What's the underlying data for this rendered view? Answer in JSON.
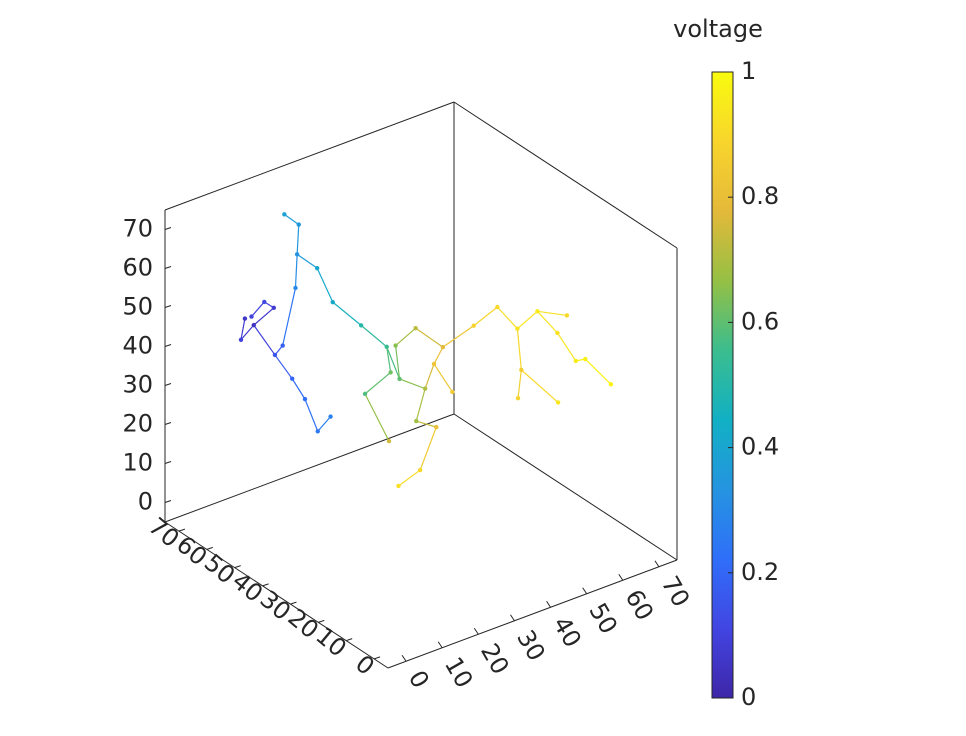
{
  "chart_data": {
    "type": "network3d",
    "colorbar_label": "voltage",
    "clim": [
      0,
      1
    ],
    "cticks": [
      0,
      0.2,
      0.4,
      0.6,
      0.8,
      1
    ],
    "colormap": [
      "#3e26a8",
      "#4245e2",
      "#2f6ff9",
      "#2594e0",
      "#12b0c4",
      "#3bbd8e",
      "#95c044",
      "#e4b93a",
      "#f8d52c",
      "#f9fb0e"
    ],
    "xlim": [
      -5,
      75
    ],
    "ylim": [
      -5,
      75
    ],
    "zlim": [
      -5,
      75
    ],
    "xticks": [
      0,
      10,
      20,
      30,
      40,
      50,
      60,
      70
    ],
    "yticks": [
      0,
      10,
      20,
      30,
      40,
      50,
      60,
      70
    ],
    "zticks": [
      0,
      10,
      20,
      30,
      40,
      50,
      60,
      70
    ],
    "nodes": {
      "x": [
        8,
        12,
        6,
        14,
        10,
        16,
        4,
        12,
        18,
        20,
        22,
        18,
        24,
        26,
        16,
        18,
        14,
        20,
        30,
        34,
        36,
        32,
        38,
        40,
        28,
        36,
        42,
        30,
        44,
        46,
        40,
        34,
        28,
        48,
        55,
        60,
        64,
        68,
        72,
        74,
        72,
        76,
        70,
        62,
        58,
        66
      ],
      "y": [
        60,
        58,
        62,
        64,
        55,
        60,
        58,
        66,
        58,
        60,
        62,
        62,
        58,
        55,
        52,
        50,
        54,
        48,
        50,
        46,
        44,
        42,
        48,
        40,
        46,
        38,
        46,
        40,
        42,
        38,
        36,
        34,
        34,
        44,
        42,
        40,
        38,
        36,
        34,
        30,
        24,
        20,
        28,
        34,
        30,
        26
      ],
      "z": [
        48,
        52,
        44,
        50,
        42,
        40,
        52,
        46,
        55,
        62,
        68,
        72,
        58,
        50,
        30,
        22,
        35,
        26,
        45,
        40,
        32,
        36,
        38,
        30,
        30,
        24,
        42,
        20,
        34,
        28,
        22,
        14,
        12,
        36,
        40,
        44,
        38,
        42,
        36,
        30,
        34,
        28,
        44,
        30,
        26,
        24
      ],
      "voltage": [
        0.05,
        0.08,
        0.1,
        0.12,
        0.15,
        0.18,
        0.06,
        0.1,
        0.3,
        0.33,
        0.35,
        0.38,
        0.4,
        0.42,
        0.22,
        0.25,
        0.2,
        0.28,
        0.5,
        0.55,
        0.6,
        0.62,
        0.65,
        0.7,
        0.58,
        0.68,
        0.72,
        0.75,
        0.82,
        0.85,
        0.8,
        0.9,
        0.92,
        0.78,
        0.88,
        0.9,
        0.93,
        0.95,
        0.92,
        0.96,
        0.97,
        0.98,
        0.9,
        0.86,
        0.88,
        0.94
      ]
    },
    "links": [
      [
        0,
        1
      ],
      [
        0,
        2
      ],
      [
        1,
        3
      ],
      [
        2,
        6
      ],
      [
        3,
        7
      ],
      [
        0,
        4
      ],
      [
        4,
        5
      ],
      [
        5,
        8
      ],
      [
        8,
        9
      ],
      [
        9,
        10
      ],
      [
        10,
        11
      ],
      [
        9,
        12
      ],
      [
        12,
        13
      ],
      [
        4,
        16
      ],
      [
        16,
        14
      ],
      [
        14,
        15
      ],
      [
        15,
        17
      ],
      [
        13,
        18
      ],
      [
        18,
        19
      ],
      [
        19,
        20
      ],
      [
        19,
        21
      ],
      [
        21,
        24
      ],
      [
        24,
        27
      ],
      [
        20,
        22
      ],
      [
        22,
        26
      ],
      [
        20,
        23
      ],
      [
        23,
        25
      ],
      [
        25,
        30
      ],
      [
        30,
        31
      ],
      [
        31,
        32
      ],
      [
        23,
        28
      ],
      [
        28,
        29
      ],
      [
        28,
        33
      ],
      [
        33,
        34
      ],
      [
        34,
        35
      ],
      [
        35,
        36
      ],
      [
        36,
        37
      ],
      [
        37,
        38
      ],
      [
        38,
        39
      ],
      [
        39,
        40
      ],
      [
        40,
        41
      ],
      [
        37,
        42
      ],
      [
        36,
        43
      ],
      [
        43,
        44
      ],
      [
        43,
        45
      ],
      [
        26,
        33
      ]
    ]
  }
}
